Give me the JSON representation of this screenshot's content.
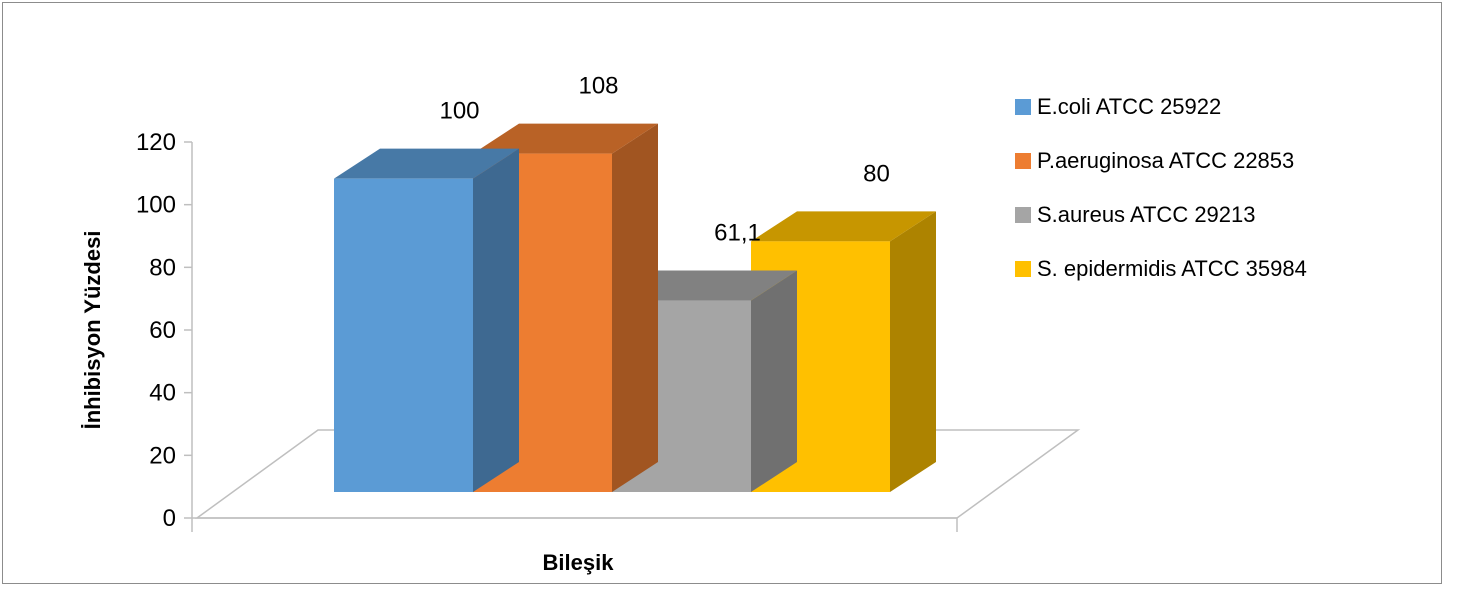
{
  "chart_data": {
    "type": "bar",
    "style": "3d-clustered",
    "categories": [
      ""
    ],
    "series": [
      {
        "name": "E.coli ATCC 25922",
        "values": [
          100
        ],
        "label": "100",
        "color": "#5b9bd5"
      },
      {
        "name": "P.aeruginosa ATCC 22853",
        "values": [
          108
        ],
        "label": "108",
        "color": "#ed7d31"
      },
      {
        "name": "S.aureus ATCC 29213",
        "values": [
          61.1
        ],
        "label": "61,1",
        "color": "#a5a5a5"
      },
      {
        "name": "S. epidermidis ATCC 35984",
        "values": [
          80
        ],
        "label": "80",
        "color": "#ffc000"
      }
    ],
    "title": "",
    "xlabel": "Bileşik",
    "ylabel": "İnhibisyon Yüzdesi",
    "ylim": [
      0,
      120
    ],
    "yticks": [
      "0",
      "20",
      "40",
      "60",
      "80",
      "100",
      "120"
    ],
    "grid": false,
    "legend": "right"
  }
}
